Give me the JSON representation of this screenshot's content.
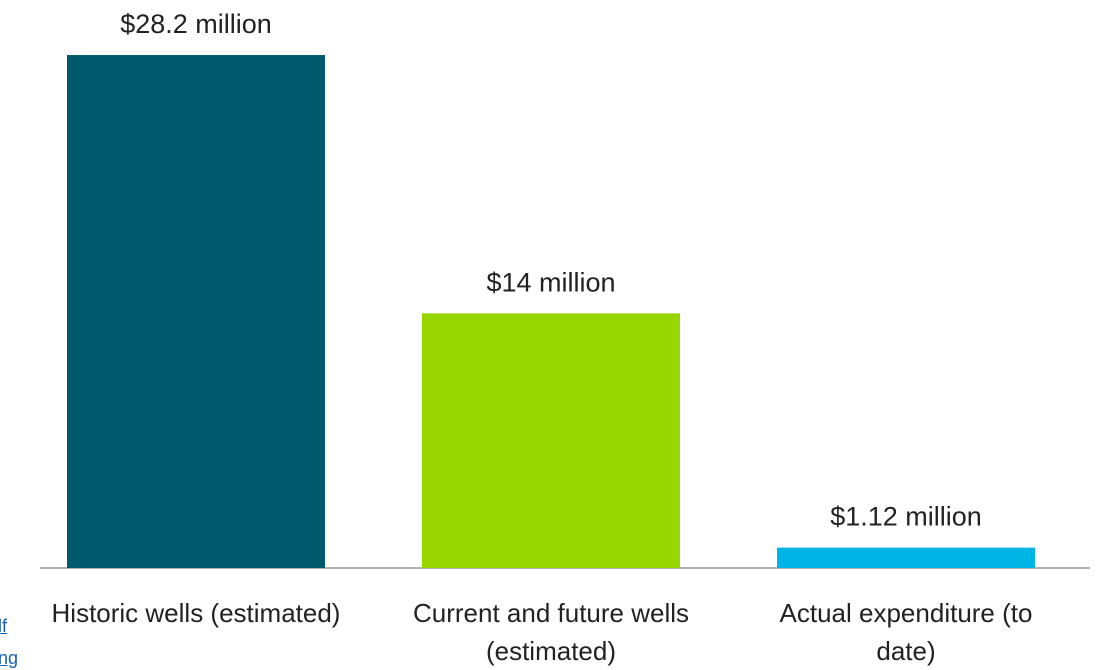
{
  "chart_data": {
    "type": "bar",
    "categories": [
      "Historic wells (estimated)",
      "Current and future wells (estimated)",
      "Actual expenditure (to date)"
    ],
    "values": [
      28.2,
      14,
      1.12
    ],
    "value_labels": [
      "$28.2 million",
      "$14 million",
      "$1.12 million"
    ],
    "colors": [
      "#005a6e",
      "#99d600",
      "#00b4e6"
    ],
    "ylim": [
      0,
      30
    ],
    "grid": false
  },
  "side_fragments": [
    "lf",
    "ng"
  ]
}
